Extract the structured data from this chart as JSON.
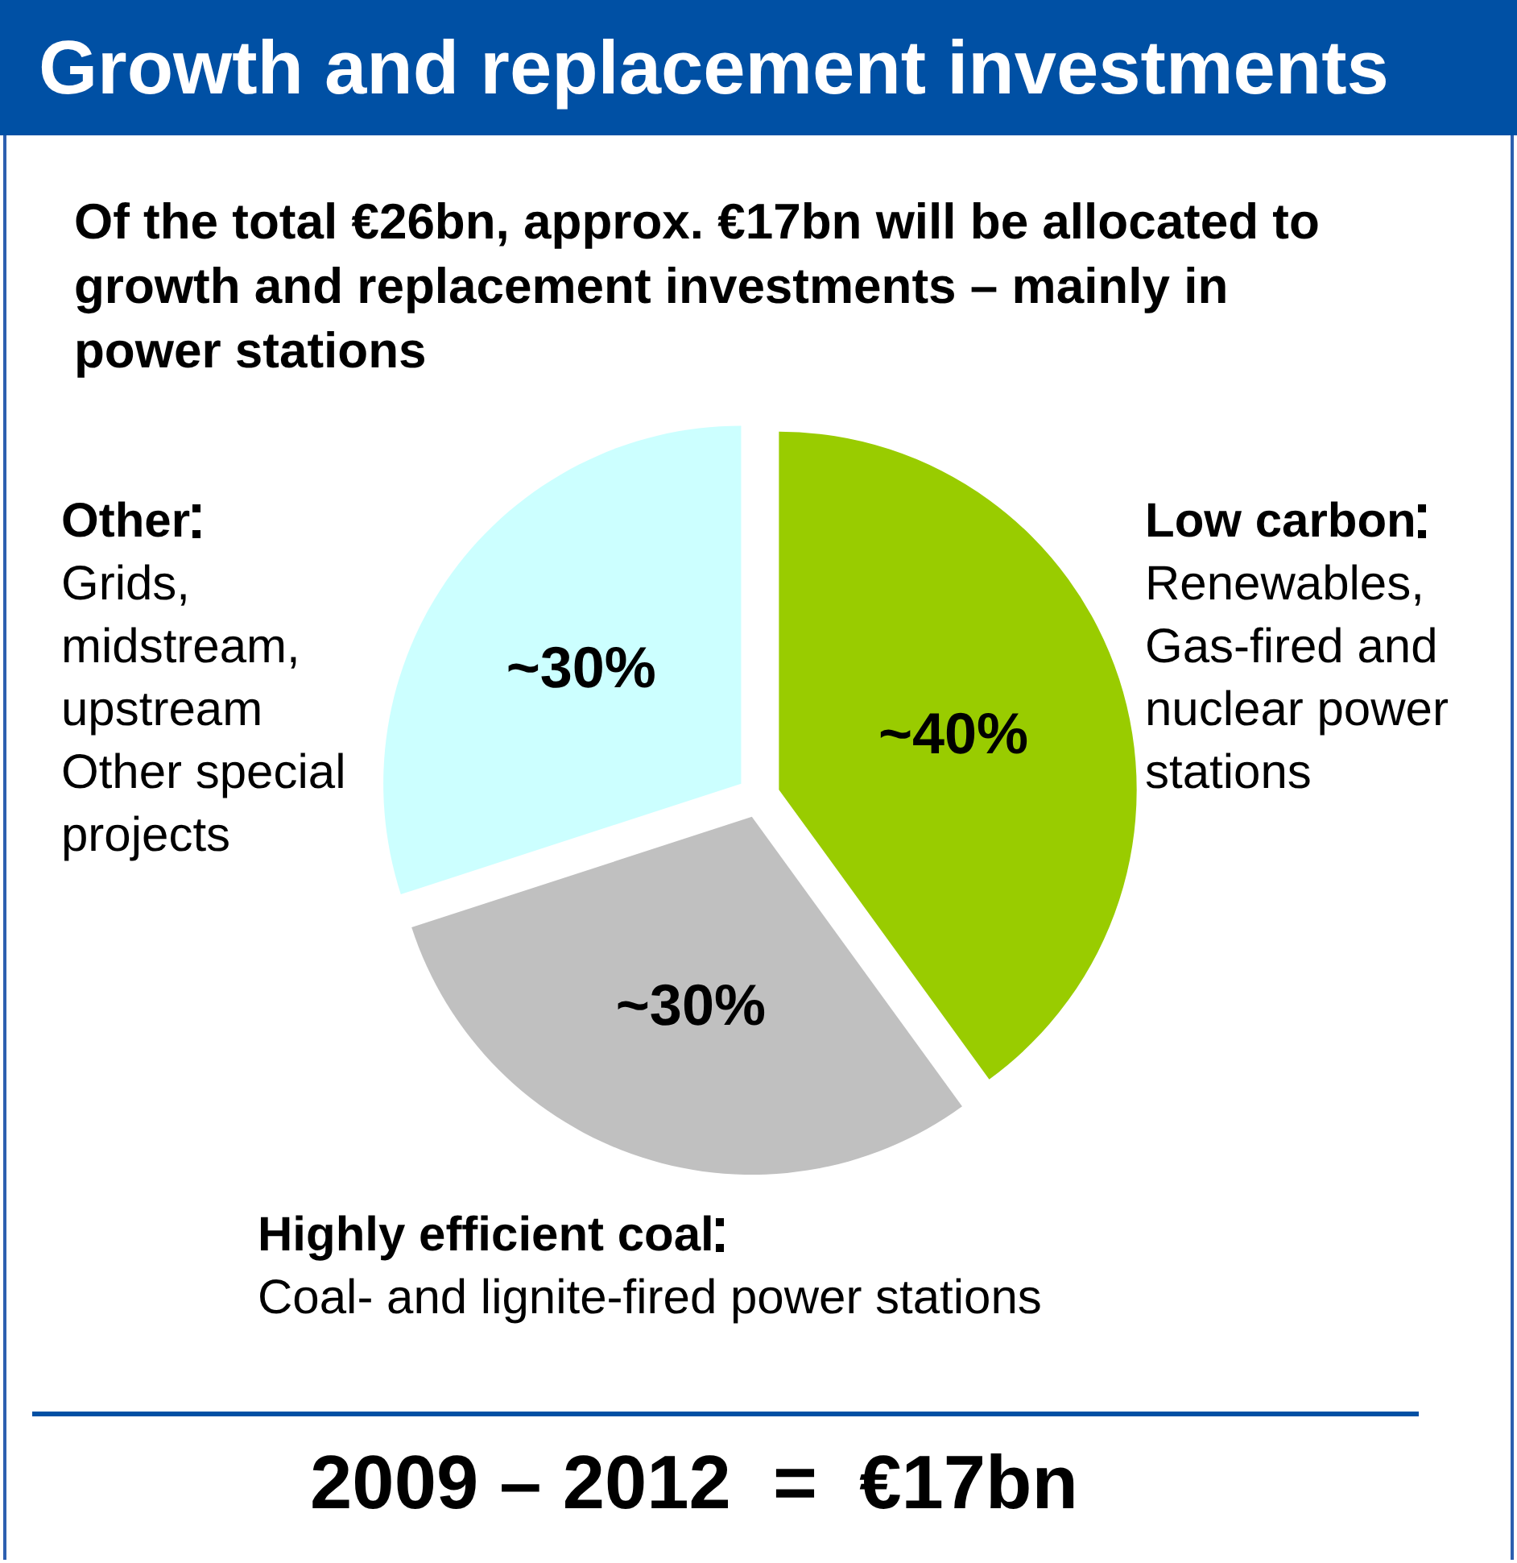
{
  "chart_data": {
    "type": "pie",
    "title": "Growth and replacement investments",
    "subtitle": "Of the total €26bn, approx. €17bn will be allocated to growth and replacement investments – mainly in power stations",
    "categories": [
      "Low carbon",
      "Highly efficient coal",
      "Other"
    ],
    "values": [
      40,
      30,
      30
    ],
    "value_labels": [
      "~40%",
      "~30%",
      "~30%"
    ],
    "colors": [
      "#99cc00",
      "#c0c0c0",
      "#ccffff"
    ],
    "annotations": [
      "Renewables, Gas-fired and nuclear power stations",
      "Coal- and lignite-fired power stations",
      "Grids, midstream, upstream Other special projects",
      "2009 – 2012  =  €17bn"
    ]
  }
}
